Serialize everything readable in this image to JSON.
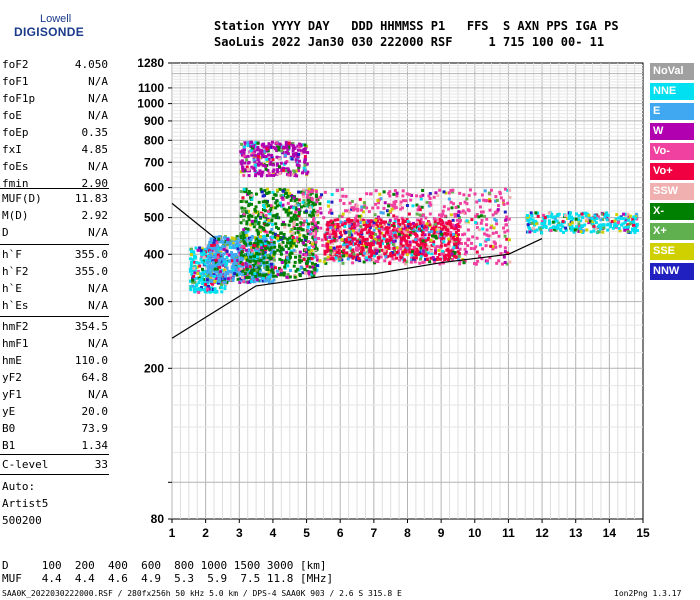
{
  "logo": {
    "top": "Lowell",
    "main": "DIGISONDE"
  },
  "header": {
    "line1": "Station YYYY DAY   DDD HHMMSS P1   FFS  S AXN PPS IGA PS",
    "line2": "SaoLuis 2022 Jan30 030 222000 RSF     1 715 100 00- 11"
  },
  "params_group1": [
    {
      "k": "foF2",
      "v": "4.050"
    },
    {
      "k": "foF1",
      "v": "N/A"
    },
    {
      "k": "foF1p",
      "v": "N/A"
    },
    {
      "k": "foE",
      "v": "N/A"
    },
    {
      "k": "foEp",
      "v": "0.35"
    },
    {
      "k": "fxI",
      "v": "4.85"
    },
    {
      "k": "foEs",
      "v": "N/A"
    },
    {
      "k": "fmin",
      "v": "2.90"
    }
  ],
  "params_group2": [
    {
      "k": "MUF(D)",
      "v": "11.83"
    },
    {
      "k": "M(D)",
      "v": "2.92"
    },
    {
      "k": "D",
      "v": "N/A"
    }
  ],
  "params_group3": [
    {
      "k": "h`F",
      "v": "355.0"
    },
    {
      "k": "h`F2",
      "v": "355.0"
    },
    {
      "k": "h`E",
      "v": "N/A"
    },
    {
      "k": "h`Es",
      "v": "N/A"
    }
  ],
  "params_group4": [
    {
      "k": "hmF2",
      "v": "354.5"
    },
    {
      "k": "hmF1",
      "v": "N/A"
    },
    {
      "k": "hmE",
      "v": "110.0"
    },
    {
      "k": "yF2",
      "v": "64.8"
    },
    {
      "k": "yF1",
      "v": "N/A"
    },
    {
      "k": "yE",
      "v": "20.0"
    },
    {
      "k": "B0",
      "v": "73.9"
    },
    {
      "k": "B1",
      "v": "1.34"
    }
  ],
  "clevel": {
    "k": "C-level",
    "v": "33"
  },
  "scaling": {
    "mode": "Auto:",
    "program": "Artist5",
    "version": "500200"
  },
  "footer": {
    "d_row": "D     100  200  400  600  800 1000 1500 3000 [km]",
    "muf_row": "MUF   4.4  4.4  4.6  4.9  5.3  5.9  7.5 11.8 [MHz]",
    "file_info": "SAA0K_2022030222000.RSF / 280fx256h 50 kHz 5.0 km / DPS-4 SAA0K 903 / 2.6 S 315.8 E",
    "software": "Ion2Png 1.3.17"
  },
  "legend": [
    {
      "label": "NoVal",
      "color": "#a0a0a0"
    },
    {
      "label": "NNE",
      "color": "#00e0f0"
    },
    {
      "label": "E",
      "color": "#40a8f0"
    },
    {
      "label": "W",
      "color": "#b000b0"
    },
    {
      "label": "Vo-",
      "color": "#f040a0"
    },
    {
      "label": "Vo+",
      "color": "#f00040"
    },
    {
      "label": "SSW",
      "color": "#f0b0b0"
    },
    {
      "label": "X-",
      "color": "#008000"
    },
    {
      "label": "X+",
      "color": "#60b050"
    },
    {
      "label": "SSE",
      "color": "#d0d000"
    },
    {
      "label": "NNW",
      "color": "#2020c0"
    }
  ],
  "chart_data": {
    "type": "scatter",
    "title": "",
    "xlabel": "",
    "ylabel": "",
    "xlim": [
      1,
      15
    ],
    "ylim": [
      80,
      1280
    ],
    "yscale": "log",
    "x_ticks": [
      1,
      2,
      3,
      4,
      5,
      6,
      7,
      8,
      9,
      10,
      11,
      12,
      13,
      14,
      15
    ],
    "y_ticks": [
      80,
      100,
      200,
      300,
      400,
      500,
      600,
      700,
      800,
      900,
      1000,
      1100,
      1280
    ],
    "y_tick_labels": [
      "80",
      "",
      "200",
      "300",
      "400",
      "500",
      "600",
      "700",
      "800",
      "900",
      "1000",
      "1100",
      "1280"
    ],
    "grid": true,
    "legend_position": "right",
    "echo_clusters": [
      {
        "color_index": 1,
        "x_range": [
          1.5,
          2.6
        ],
        "y_range": [
          320,
          420
        ],
        "density": "medium"
      },
      {
        "color_index": 2,
        "x_range": [
          2.0,
          4.0
        ],
        "y_range": [
          340,
          450
        ],
        "density": "high"
      },
      {
        "color_index": 7,
        "x_range": [
          3.0,
          5.3
        ],
        "y_range": [
          350,
          600
        ],
        "density": "high"
      },
      {
        "color_index": 4,
        "x_range": [
          4.8,
          11.0
        ],
        "y_range": [
          380,
          600
        ],
        "density": "high"
      },
      {
        "color_index": 5,
        "x_range": [
          5.5,
          9.5
        ],
        "y_range": [
          390,
          500
        ],
        "density": "high"
      },
      {
        "color_index": 3,
        "x_range": [
          3.0,
          5.0
        ],
        "y_range": [
          650,
          800
        ],
        "density": "medium"
      },
      {
        "color_index": 1,
        "x_range": [
          11.5,
          14.8
        ],
        "y_range": [
          460,
          520
        ],
        "density": "medium"
      }
    ],
    "trace_lines": [
      {
        "name": "lower",
        "points": [
          [
            1,
            240
          ],
          [
            3.5,
            330
          ],
          [
            5.5,
            350
          ],
          [
            7,
            355
          ],
          [
            9,
            380
          ],
          [
            11,
            400
          ],
          [
            12,
            440
          ]
        ]
      },
      {
        "name": "upper",
        "points": [
          [
            1,
            545
          ],
          [
            2.3,
            440
          ]
        ]
      }
    ]
  }
}
